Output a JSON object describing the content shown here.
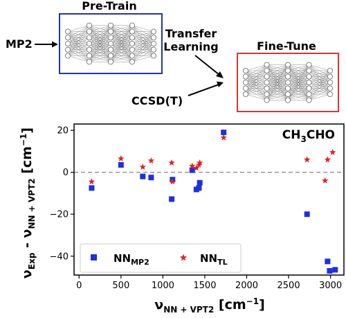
{
  "diagram": {
    "pretrain_label": "Pre-Train",
    "finetune_label": "Fine-Tune",
    "mp2_label": "MP2",
    "transfer_label_1": "Transfer",
    "transfer_label_2": "Learning",
    "ccsdt_label": "CCSD(T)",
    "pretrain_color": "#2233aa",
    "finetune_color": "#dd3333"
  },
  "chart_data": {
    "type": "scatter",
    "annotation": {
      "base": "CH",
      "sub1": "3",
      "mid": "CHO"
    },
    "xlabel": {
      "main": "ν",
      "sub": "NN + VPT2",
      "unit": " [cm",
      "sup": "−1",
      "close": "]"
    },
    "ylabel": {
      "main1": "ν",
      "sub1": "Exp",
      "mid": " - ",
      "main2": "ν",
      "sub2": "NN + VPT2",
      "unit": " [cm",
      "sup": "−1",
      "close": "]"
    },
    "xlim": [
      -60,
      3160
    ],
    "ylim": [
      -49,
      23
    ],
    "xticks": [
      0,
      500,
      1000,
      1500,
      2000,
      2500,
      3000
    ],
    "yticks": [
      -40,
      -20,
      0,
      20
    ],
    "zero_line": true,
    "legend_position": "lower-left",
    "series": [
      {
        "name_main": "NN",
        "name_sub": "MP2",
        "marker": "square",
        "color": "#1f2fe0",
        "x": [
          150,
          500,
          760,
          860,
          1105,
          1115,
          1350,
          1400,
          1430,
          1440,
          1725,
          2720,
          2965,
          2990,
          3055
        ],
        "y": [
          -7.5,
          3.5,
          -2,
          -2.5,
          -12.8,
          -3.5,
          1,
          -8.2,
          -7.5,
          -5,
          19,
          -20,
          -42.5,
          -47,
          -46.5
        ]
      },
      {
        "name_main": "NN",
        "name_sub": "TL",
        "marker": "star",
        "color": "#dd2222",
        "x": [
          150,
          500,
          760,
          860,
          1105,
          1115,
          1350,
          1400,
          1430,
          1440,
          1725,
          2720,
          2935,
          2965,
          3025
        ],
        "y": [
          -4.5,
          6.5,
          2.5,
          5.5,
          4.5,
          -4.5,
          3,
          2,
          3.5,
          4.5,
          16.5,
          6,
          -4,
          6,
          9.5
        ]
      }
    ]
  }
}
